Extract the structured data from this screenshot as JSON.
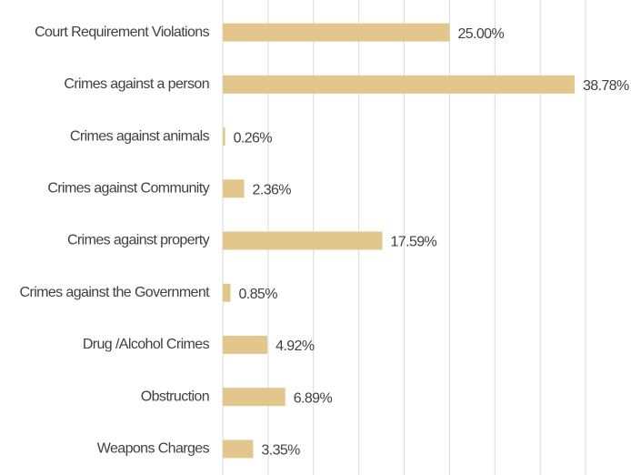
{
  "chart_data": {
    "type": "bar",
    "orientation": "horizontal",
    "categories": [
      "Court Requirement Violations",
      "Crimes against a person",
      "Crimes against animals",
      "Crimes against Community",
      "Crimes against property",
      "Crimes against the Government",
      "Drug /Alcohol Crimes",
      "Obstruction",
      "Weapons Charges"
    ],
    "values": [
      25.0,
      38.78,
      0.26,
      2.36,
      17.59,
      0.85,
      4.92,
      6.89,
      3.35
    ],
    "value_labels": [
      "25.00%",
      "38.78%",
      "0.26%",
      "2.36%",
      "17.59%",
      "0.85%",
      "4.92%",
      "6.89%",
      "3.35%"
    ],
    "color": "#e2c68c",
    "xlim": [
      0,
      45
    ],
    "xticks": [
      0,
      5,
      10,
      15,
      20,
      25,
      30,
      35,
      40
    ],
    "grid": true
  }
}
